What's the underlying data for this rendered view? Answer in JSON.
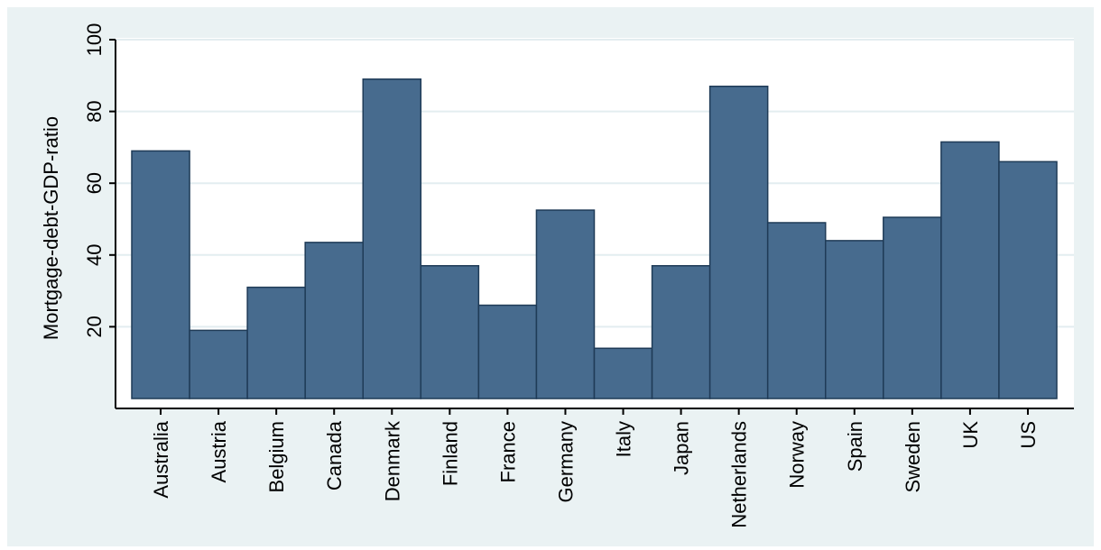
{
  "chart_data": {
    "type": "bar",
    "title": "",
    "xlabel": "",
    "ylabel": "Mortgage-debt-GDP-ratio",
    "categories": [
      "Australia",
      "Austria",
      "Belgium",
      "Canada",
      "Denmark",
      "Finland",
      "France",
      "Germany",
      "Italy",
      "Japan",
      "Netherlands",
      "Norway",
      "Spain",
      "Sweden",
      "UK",
      "US"
    ],
    "values": [
      69,
      19,
      31,
      43.5,
      89,
      37,
      26,
      52.5,
      14,
      37,
      87,
      49,
      44,
      50.5,
      71.5,
      66
    ],
    "ylim": [
      0,
      100
    ],
    "yticks": [
      20,
      40,
      60,
      80,
      100
    ],
    "grid": true,
    "legend": "none",
    "colors": {
      "bar_fill": "#476b8e",
      "bar_stroke": "#1f3b57",
      "grid": "#ffffff",
      "plot_bg": "#ffffff",
      "page_bg": "#eaf2f3"
    }
  }
}
